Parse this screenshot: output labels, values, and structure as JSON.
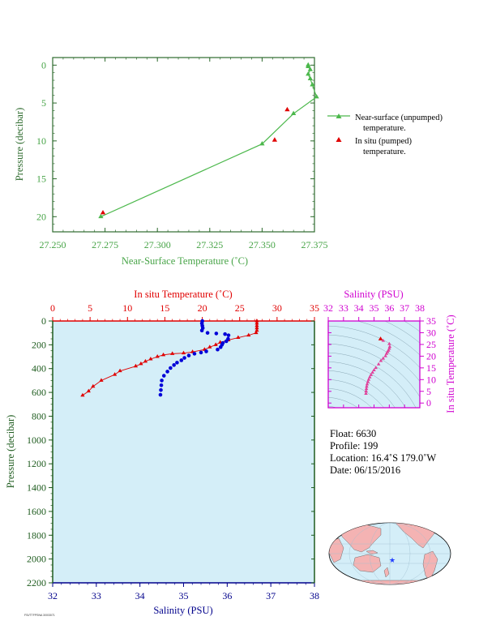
{
  "colors": {
    "top_axis": "#2e6b2e",
    "top_tick_labels": "#47a447",
    "near_surface": "#4cb84c",
    "in_situ": "#e00000",
    "salinity": "#0000d8",
    "ts_axis": "#d000d0",
    "ts_marker": "#e0409a",
    "plot_bg": "#d4eef8",
    "dark_axis": "#1f5c1f",
    "blue_axis": "#00008b",
    "land": "#f4b3b3",
    "ocean": "#d4eef8"
  },
  "chart_data": [
    {
      "type": "line",
      "xlabel": "Near-Surface Temperature (˚C)",
      "ylabel": "Pressure (decibar)",
      "xlim": [
        27.25,
        27.375
      ],
      "ylim": [
        22,
        -1
      ],
      "x_ticks": [
        "27.250",
        "27.275",
        "27.300",
        "27.325",
        "27.350",
        "27.375"
      ],
      "y_ticks": [
        "0",
        "5",
        "10",
        "15",
        "20"
      ],
      "legend_placement": "right",
      "series": [
        {
          "name": "Near-surface (unpumped) temperature.",
          "marker": "triangle",
          "points": [
            [
              27.273,
              20.0
            ],
            [
              27.35,
              10.4
            ],
            [
              27.365,
              6.4
            ],
            [
              27.376,
              4.2
            ],
            [
              27.374,
              2.6
            ],
            [
              27.373,
              1.8
            ],
            [
              27.372,
              1.2
            ],
            [
              27.373,
              0.6
            ],
            [
              27.372,
              0.2
            ],
            [
              27.372,
              0.0
            ]
          ]
        },
        {
          "name": "In situ (pumped) temperature.",
          "marker": "triangle",
          "points": [
            [
              27.274,
              19.5
            ],
            [
              27.356,
              9.9
            ],
            [
              27.362,
              5.9
            ]
          ]
        }
      ],
      "legend": [
        {
          "line1": "Near-surface (unpumped)",
          "line2": "temperature."
        },
        {
          "line1": "In situ (pumped)",
          "line2": "temperature."
        }
      ]
    },
    {
      "type": "line",
      "ylabel": "Pressure (decibar)",
      "x_top_label": "In situ Temperature (˚C)",
      "x_bottom_label": "Salinity (PSU)",
      "temp_lim": [
        0,
        35
      ],
      "sal_lim": [
        32,
        38
      ],
      "ylim": [
        2200,
        0
      ],
      "temp_ticks": [
        "0",
        "5",
        "10",
        "15",
        "20",
        "25",
        "30",
        "35"
      ],
      "sal_ticks": [
        "32",
        "33",
        "34",
        "35",
        "36",
        "37",
        "38"
      ],
      "y_ticks": [
        "0",
        "200",
        "400",
        "600",
        "800",
        "1000",
        "1200",
        "1400",
        "1600",
        "1800",
        "2000",
        "2200"
      ],
      "series": [
        {
          "name": "In situ Temperature",
          "points": [
            [
              27.3,
              0
            ],
            [
              27.3,
              20
            ],
            [
              27.3,
              40
            ],
            [
              27.3,
              60
            ],
            [
              27.3,
              80
            ],
            [
              27.2,
              100
            ],
            [
              26.2,
              120
            ],
            [
              24.8,
              140
            ],
            [
              23.5,
              160
            ],
            [
              22.4,
              180
            ],
            [
              21.8,
              200
            ],
            [
              21.0,
              220
            ],
            [
              20.3,
              240
            ],
            [
              18.7,
              260
            ],
            [
              17.5,
              270
            ],
            [
              16.0,
              275
            ],
            [
              14.8,
              285
            ],
            [
              14.0,
              300
            ],
            [
              13.1,
              320
            ],
            [
              12.4,
              340
            ],
            [
              11.8,
              360
            ],
            [
              11.1,
              380
            ],
            [
              9.0,
              420
            ],
            [
              8.3,
              450
            ],
            [
              6.5,
              500
            ],
            [
              5.4,
              550
            ],
            [
              4.8,
              590
            ],
            [
              4.0,
              625
            ]
          ]
        },
        {
          "name": "Salinity",
          "points": [
            [
              35.43,
              0
            ],
            [
              35.42,
              20
            ],
            [
              35.43,
              40
            ],
            [
              35.44,
              60
            ],
            [
              35.42,
              80
            ],
            [
              35.55,
              100
            ],
            [
              35.75,
              105
            ],
            [
              35.95,
              110
            ],
            [
              36.03,
              120
            ],
            [
              36.02,
              150
            ],
            [
              35.98,
              170
            ],
            [
              35.9,
              185
            ],
            [
              35.88,
              200
            ],
            [
              35.85,
              220
            ],
            [
              35.78,
              240
            ],
            [
              35.52,
              255
            ],
            [
              35.4,
              265
            ],
            [
              35.25,
              275
            ],
            [
              35.12,
              290
            ],
            [
              35.02,
              310
            ],
            [
              34.95,
              330
            ],
            [
              34.85,
              350
            ],
            [
              34.78,
              370
            ],
            [
              34.7,
              395
            ],
            [
              34.63,
              425
            ],
            [
              34.55,
              460
            ],
            [
              34.5,
              500
            ],
            [
              34.49,
              540
            ],
            [
              34.48,
              580
            ],
            [
              34.47,
              620
            ]
          ]
        }
      ]
    },
    {
      "type": "scatter",
      "xlabel": "Salinity (PSU)",
      "ylabel": "In situ Temperature (˚C)",
      "xlim": [
        32,
        38
      ],
      "ylim": [
        -2,
        35
      ],
      "x_ticks": [
        "32",
        "33",
        "34",
        "35",
        "36",
        "37",
        "38"
      ],
      "y_ticks": [
        "0",
        "5",
        "10",
        "15",
        "20",
        "25",
        "30",
        "35"
      ],
      "points": [
        [
          35.43,
          27.3
        ],
        [
          35.6,
          26.6
        ],
        [
          36.0,
          25.2
        ],
        [
          36.03,
          24.0
        ],
        [
          36.0,
          23.2
        ],
        [
          35.95,
          22.4
        ],
        [
          35.88,
          21.8
        ],
        [
          35.82,
          21.0
        ],
        [
          35.75,
          20.0
        ],
        [
          35.6,
          19.0
        ],
        [
          35.45,
          18.0
        ],
        [
          35.3,
          16.5
        ],
        [
          35.12,
          15.0
        ],
        [
          35.0,
          14.0
        ],
        [
          34.9,
          13.0
        ],
        [
          34.8,
          12.0
        ],
        [
          34.72,
          11.0
        ],
        [
          34.65,
          10.0
        ],
        [
          34.6,
          9.0
        ],
        [
          34.55,
          8.0
        ],
        [
          34.52,
          7.0
        ],
        [
          34.5,
          6.0
        ],
        [
          34.48,
          5.0
        ],
        [
          34.47,
          4.0
        ]
      ]
    }
  ],
  "float_info": {
    "float": "Float:  6630",
    "profile": "Profile:  199",
    "location": "Location:  16.4˚S  179.0˚W",
    "date": "Date:  06/15/2016"
  },
  "credit_text": "FSI/TTFPSNA 3/003071"
}
